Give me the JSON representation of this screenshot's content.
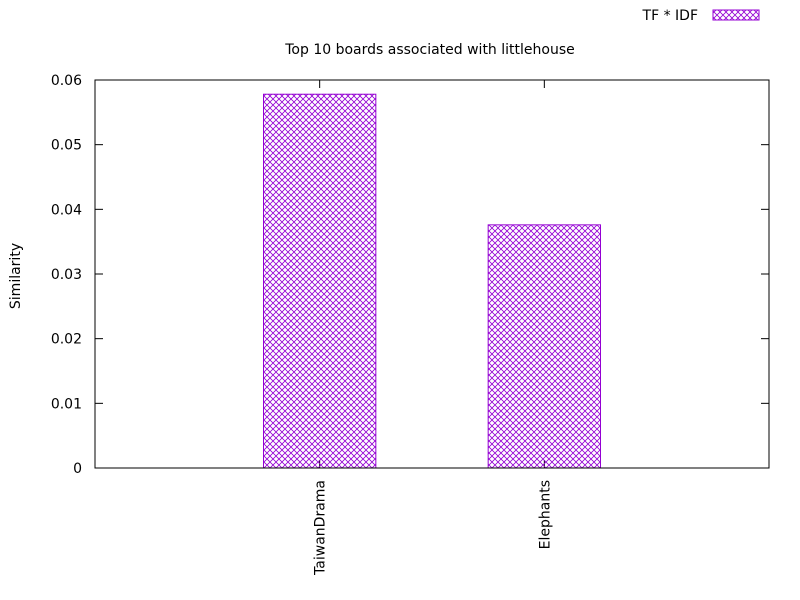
{
  "chart_data": {
    "type": "bar",
    "title": "Top 10 boards associated with littlehouse",
    "xlabel": "",
    "ylabel": "Similarity",
    "categories": [
      "TaiwanDrama",
      "Elephants"
    ],
    "series": [
      {
        "name": "TF * IDF",
        "values": [
          0.0578,
          0.0376
        ],
        "color": "#9400d3",
        "pattern": "crosshatch"
      }
    ],
    "ylim": [
      0,
      0.06
    ],
    "yticks": [
      0,
      0.01,
      0.02,
      0.03,
      0.04,
      0.05,
      0.06
    ],
    "ytick_labels": [
      "0",
      "0.01",
      "0.02",
      "0.03",
      "0.04",
      "0.05",
      "0.06"
    ],
    "grid": false,
    "legend_position": "top-right"
  }
}
